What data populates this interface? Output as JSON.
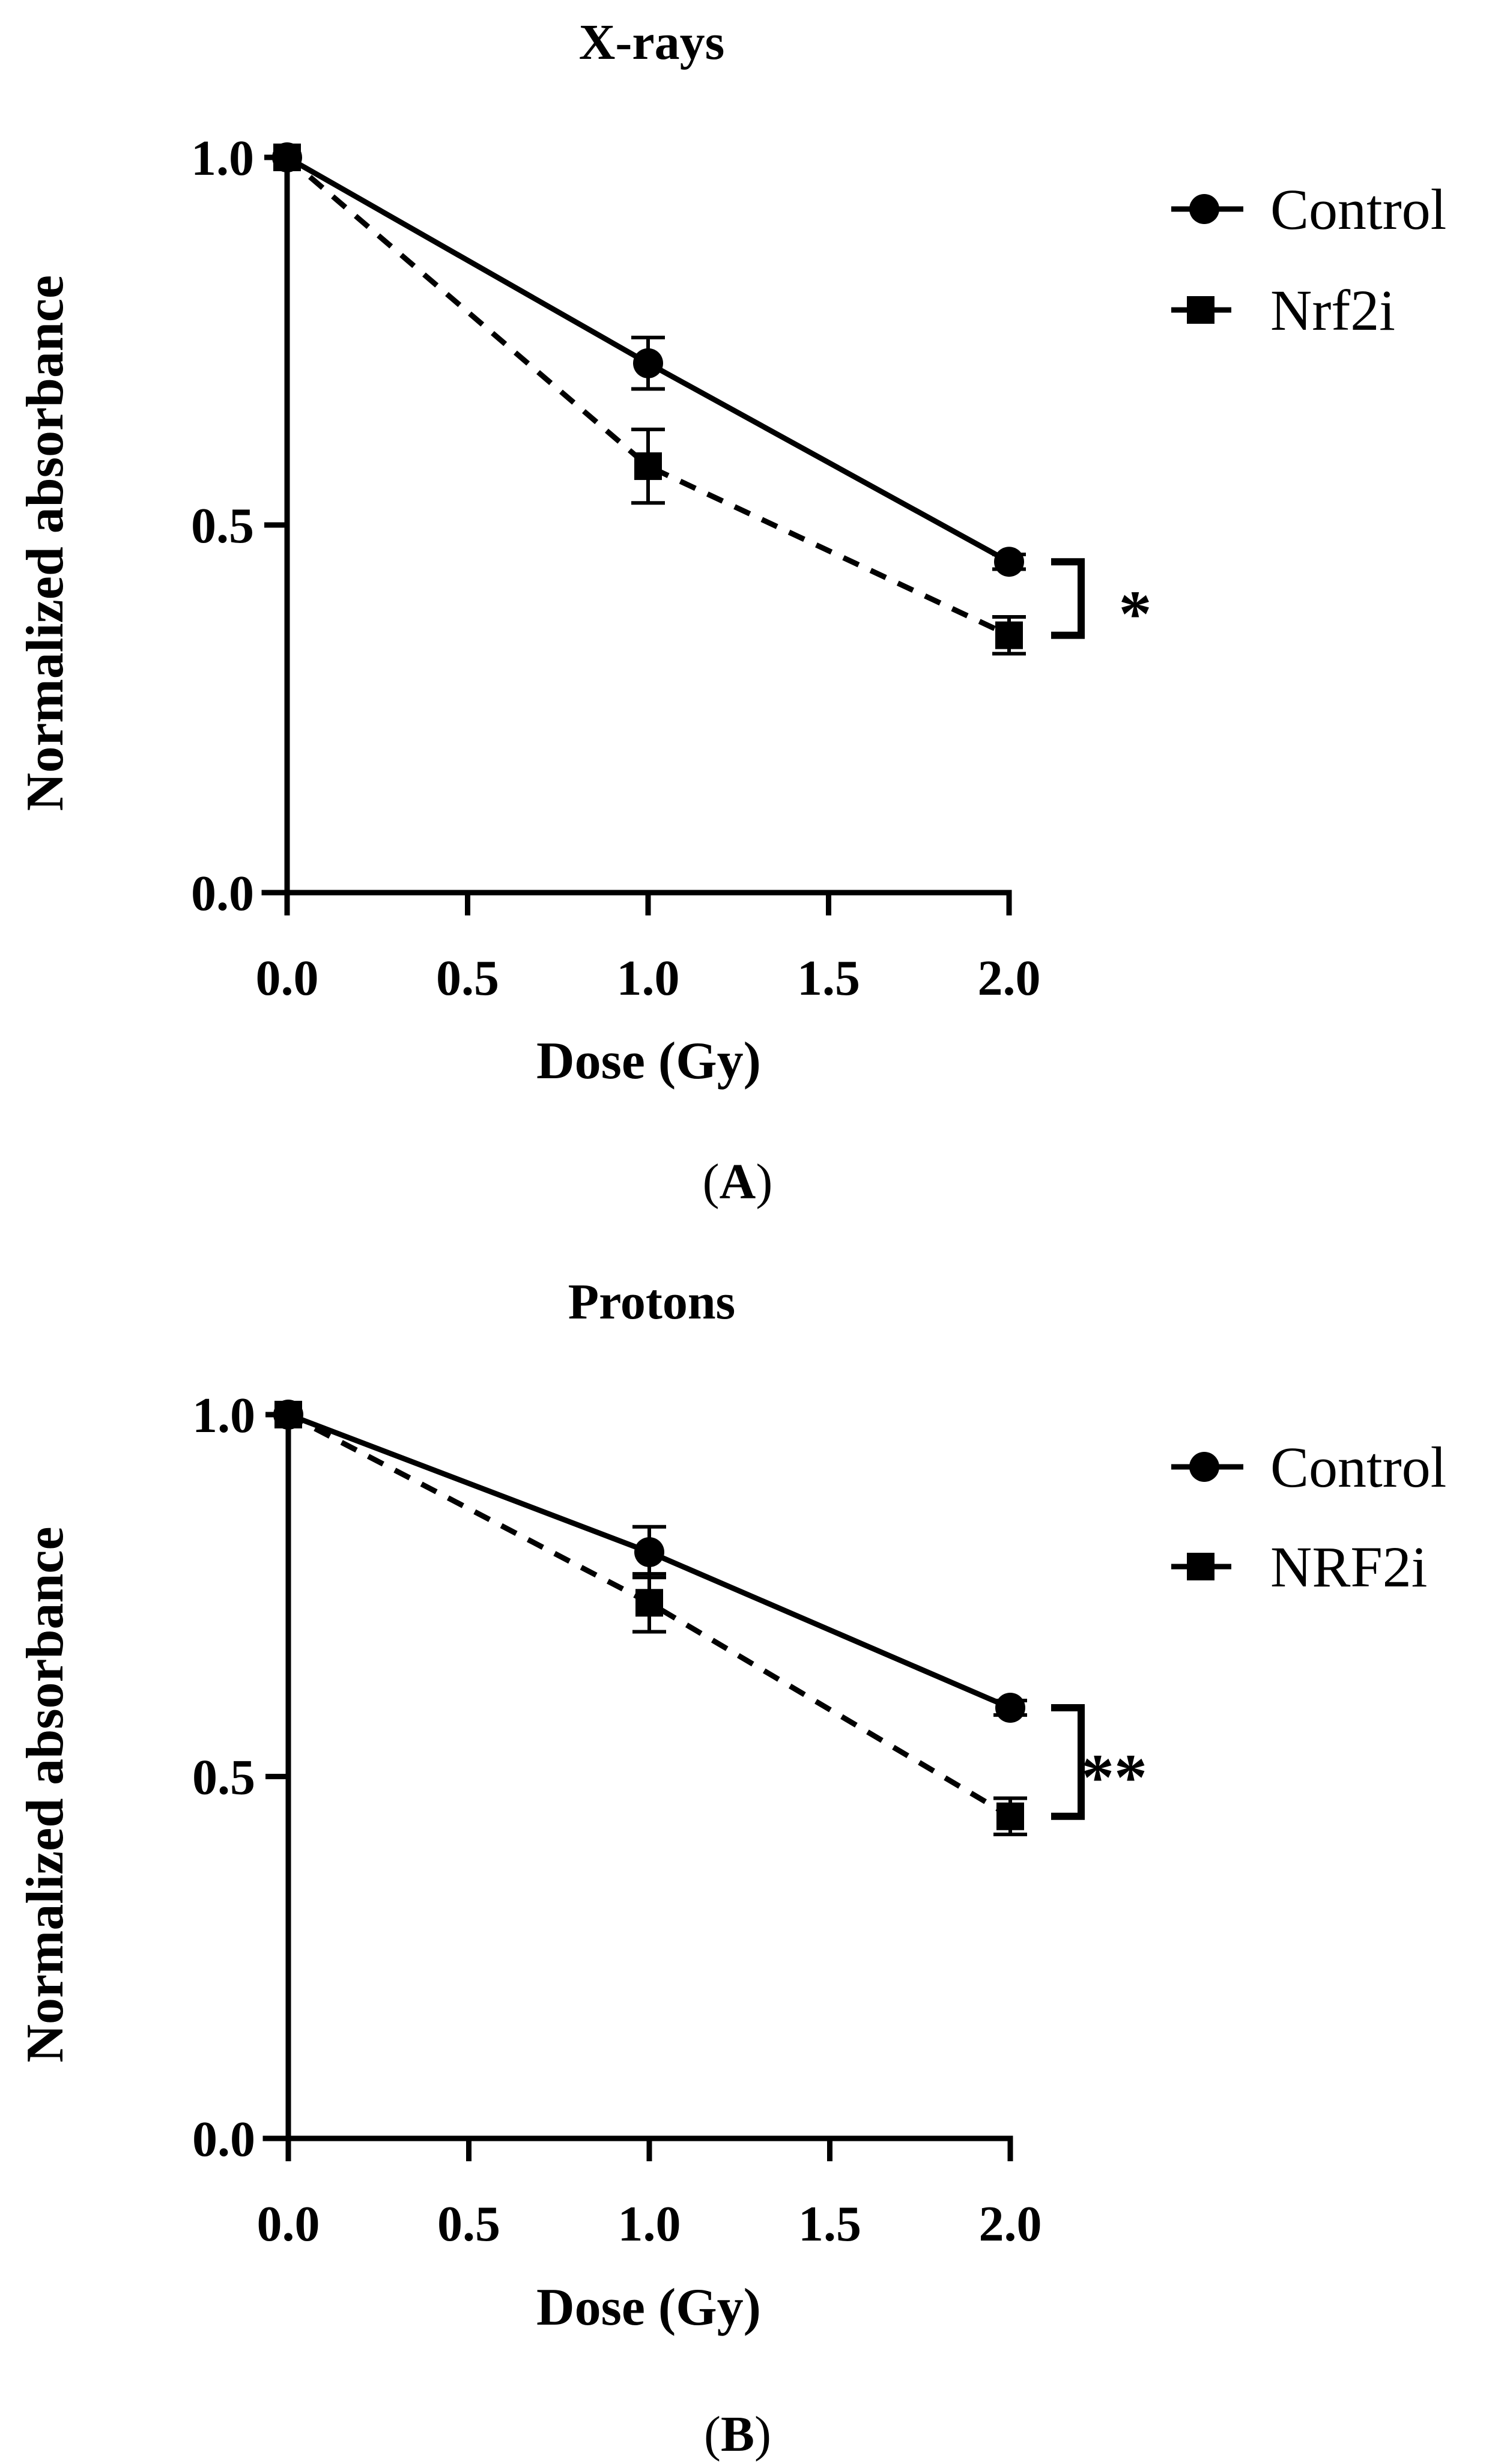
{
  "chart_data": [
    {
      "type": "line",
      "title": "X-rays",
      "xlabel": "Dose (Gy)",
      "ylabel": "Normalized absorbance",
      "xlim": [
        0,
        2
      ],
      "ylim": [
        0,
        1
      ],
      "xticks": [
        "0.0",
        "0.5",
        "1.0",
        "1.5",
        "2.0"
      ],
      "yticks": [
        "0.0",
        "0.5",
        "1.0"
      ],
      "x": [
        0,
        1,
        2
      ],
      "series": [
        {
          "name": "Control",
          "values": [
            1.0,
            0.72,
            0.45
          ],
          "errors": [
            0,
            0.035,
            0.01
          ],
          "marker": "circle",
          "line": "solid"
        },
        {
          "name": "Nrf2i",
          "values": [
            1.0,
            0.58,
            0.35
          ],
          "errors": [
            0,
            0.05,
            0.025
          ],
          "marker": "square",
          "line": "dashed"
        }
      ],
      "significance": "*",
      "legend_position": "top-right",
      "panel_label": {
        "open": "(",
        "letter": "A",
        "close": ")"
      }
    },
    {
      "type": "line",
      "title": "Protons",
      "xlabel": "Dose (Gy)",
      "ylabel": "Normalized absorbance",
      "xlim": [
        0,
        2
      ],
      "ylim": [
        0,
        1
      ],
      "xticks": [
        "0.0",
        "0.5",
        "1.0",
        "1.5",
        "2.0"
      ],
      "yticks": [
        "0.0",
        "0.5",
        "1.0"
      ],
      "x": [
        0,
        1,
        2
      ],
      "series": [
        {
          "name": "Control",
          "values": [
            1.0,
            0.81,
            0.595
          ],
          "errors": [
            0,
            0.035,
            0.01
          ],
          "marker": "circle",
          "line": "solid"
        },
        {
          "name": "NRF2i",
          "values": [
            1.0,
            0.74,
            0.445
          ],
          "errors": [
            0,
            0.04,
            0.025
          ],
          "marker": "square",
          "line": "dashed"
        }
      ],
      "significance": "**",
      "legend_position": "top-right",
      "panel_label": {
        "open": "(",
        "letter": "B",
        "close": ")"
      }
    }
  ]
}
